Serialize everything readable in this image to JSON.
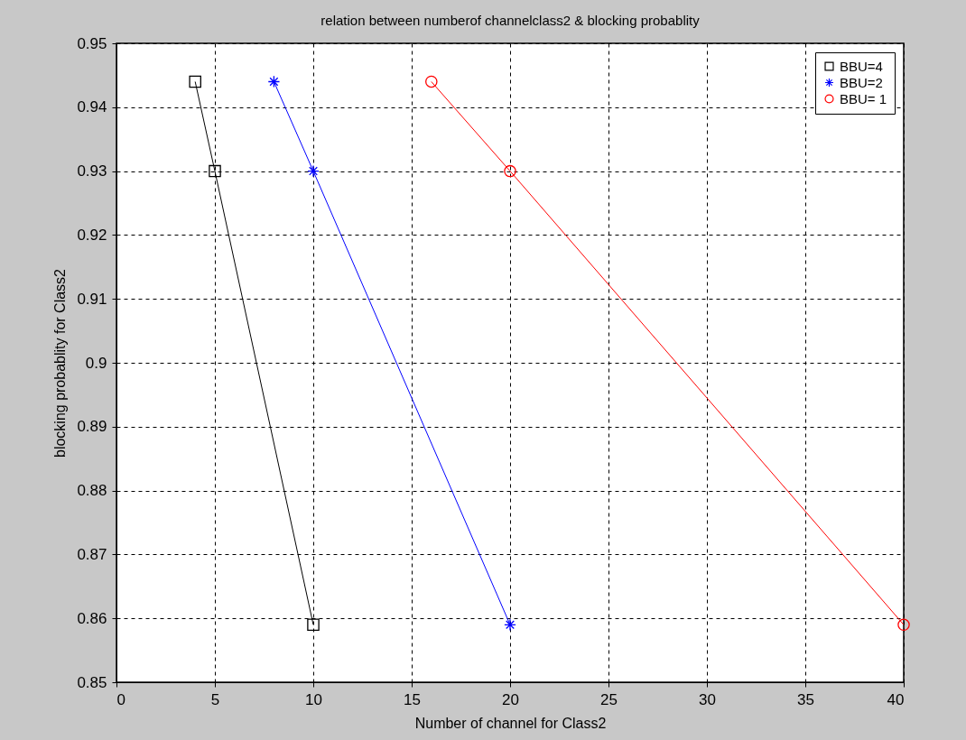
{
  "chart_data": {
    "type": "line",
    "title": "relation between numberof channelclass2 & blocking probablity",
    "xlabel": "Number of channel for Class2",
    "ylabel": "blocking probablity for Class2",
    "series": [
      {
        "name": "BBU=4",
        "color": "#000000",
        "marker": "square",
        "x": [
          4,
          5,
          10
        ],
        "values": [
          0.944,
          0.93,
          0.859
        ]
      },
      {
        "name": "BBU=2",
        "color": "#0000ff",
        "marker": "cross",
        "x": [
          8,
          10,
          20
        ],
        "values": [
          0.944,
          0.93,
          0.859
        ]
      },
      {
        "name": "BBU= 1",
        "color": "#ff0000",
        "marker": "circle",
        "x": [
          16,
          20,
          40
        ],
        "values": [
          0.944,
          0.93,
          0.859
        ]
      }
    ],
    "xlim": [
      0,
      40
    ],
    "xticks": [
      0,
      5,
      10,
      15,
      20,
      25,
      30,
      35,
      40
    ],
    "ylim": [
      0.85,
      0.95
    ],
    "yticks": [
      0.85,
      0.86,
      0.87,
      0.88,
      0.89,
      0.9,
      0.91,
      0.92,
      0.93,
      0.94,
      0.95
    ],
    "grid": true,
    "legend": "top right",
    "line_style": "solid"
  }
}
